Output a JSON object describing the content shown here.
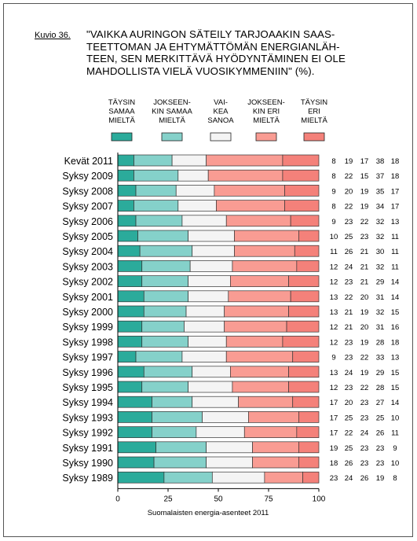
{
  "figure_label": "Kuvio 36.",
  "title_lines": [
    "\"VAIKKA AURINGON SÄTEILY TARJOAAKIN SAAS-",
    "TEETTOMAN JA EHTYMÄTTÖMÄN ENERGIANLÄH-",
    "TEEN, SEN MERKITTÄVÄ HYÖDYNTÄMINEN EI OLE",
    "MAHDOLLISTA VIELÄ VUOSIKYMMENIIN\" (%)."
  ],
  "source_note": "Suomalaisten energia-asenteet 2011",
  "chart_data": {
    "type": "bar",
    "orientation": "horizontal",
    "stacked": true,
    "title": "\"VAIKKA AURINGON SÄTEILY TARJOAAKIN SAASTEETTOMAN JA EHTYMÄTTÖMÄN ENERGIANLÄHTEEN, SEN MERKITTÄVÄ HYÖDYNTÄMINEN EI OLE MAHDOLLISTA VIELÄ VUOSIKYMMENIIN\" (%).",
    "xlim": [
      0,
      100
    ],
    "xticks": [
      "0",
      "25",
      "50",
      "75",
      "100"
    ],
    "categories": [
      "Kevät 2011",
      "Syksy 2009",
      "Syksy 2008",
      "Syksy 2007",
      "Syksy 2006",
      "Syksy 2005",
      "Syksy 2004",
      "Syksy 2003",
      "Syksy 2002",
      "Syksy 2001",
      "Syksy 2000",
      "Syksy 1999",
      "Syksy 1998",
      "Syksy 1997",
      "Syksy 1996",
      "Syksy 1995",
      "Syksy 1994",
      "Syksy 1993",
      "Syksy 1992",
      "Syksy 1991",
      "Syksy 1990",
      "Syksy 1989"
    ],
    "series": [
      {
        "name": "TÄYSIN SAMAA MIELTÄ",
        "legend_lines": [
          "TÄYSIN",
          "SAMAA",
          "MIELTÄ"
        ],
        "color": "#2bab9b",
        "values": [
          8,
          8,
          9,
          8,
          9,
          10,
          11,
          12,
          12,
          13,
          13,
          12,
          12,
          9,
          13,
          12,
          17,
          17,
          17,
          19,
          18,
          23
        ]
      },
      {
        "name": "JOKSEENKIN SAMAA MIELTÄ",
        "legend_lines": [
          "JOKSEEN-",
          "KIN SAMAA",
          "MIELTÄ"
        ],
        "color": "#85d1ca",
        "values": [
          19,
          22,
          20,
          22,
          23,
          25,
          26,
          24,
          23,
          22,
          21,
          21,
          23,
          23,
          24,
          23,
          20,
          25,
          22,
          25,
          26,
          24
        ]
      },
      {
        "name": "VAIKEA SANOA",
        "legend_lines": [
          "VAI-",
          "KEA",
          "SANOA"
        ],
        "color": "#f4f4f4",
        "values": [
          17,
          15,
          19,
          19,
          22,
          23,
          21,
          21,
          21,
          20,
          19,
          20,
          19,
          22,
          19,
          22,
          23,
          23,
          24,
          23,
          23,
          26
        ]
      },
      {
        "name": "JOKSEENKIN ERI MIELTÄ",
        "legend_lines": [
          "JOKSEEN-",
          "KIN ERI",
          "MIELTÄ"
        ],
        "color": "#f99c93",
        "values": [
          38,
          37,
          35,
          34,
          32,
          32,
          30,
          32,
          29,
          31,
          32,
          31,
          28,
          33,
          29,
          28,
          27,
          25,
          26,
          23,
          23,
          19
        ]
      },
      {
        "name": "TÄYSIN ERI MIELTÄ",
        "legend_lines": [
          "TÄYSIN",
          "ERI",
          "MIELTÄ"
        ],
        "color": "#f4817a",
        "values": [
          18,
          18,
          17,
          17,
          13,
          11,
          11,
          11,
          14,
          14,
          15,
          16,
          18,
          13,
          15,
          15,
          14,
          10,
          11,
          9,
          10,
          8
        ]
      }
    ],
    "grid": false,
    "legend": "top"
  }
}
